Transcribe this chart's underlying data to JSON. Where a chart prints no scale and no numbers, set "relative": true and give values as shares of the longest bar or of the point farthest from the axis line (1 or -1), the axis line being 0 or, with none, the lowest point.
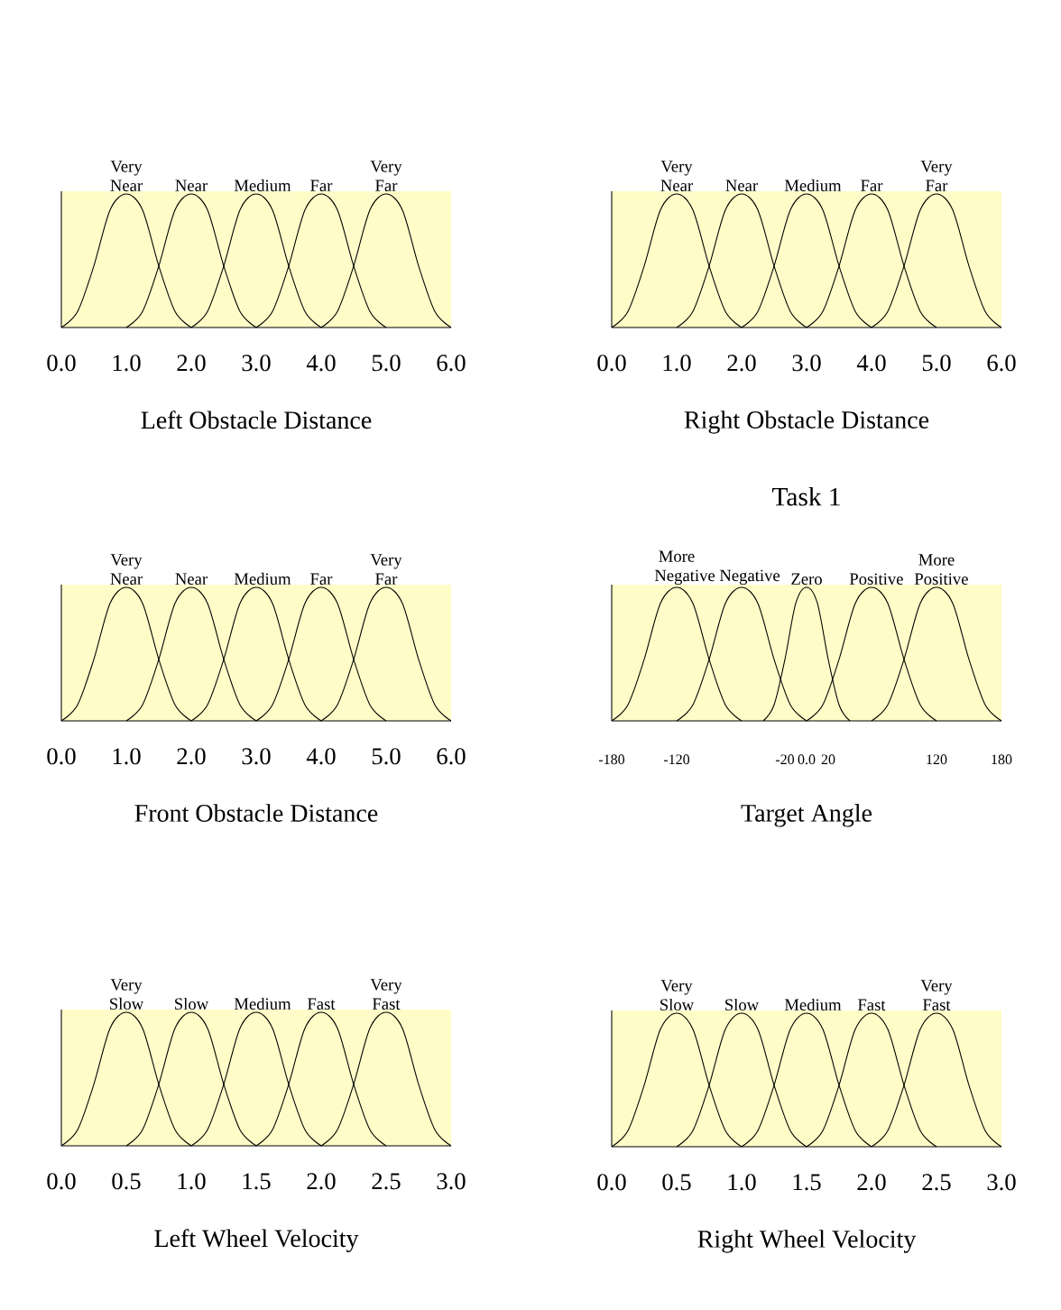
{
  "chart_data": [
    {
      "type": "line",
      "relative": true,
      "xlabel": "Left Obstacle Distance",
      "xlim": [
        0,
        6
      ],
      "xticks": [
        {
          "value": 0,
          "label": "0.0"
        },
        {
          "value": 1,
          "label": "1.0"
        },
        {
          "value": 2,
          "label": "2.0"
        },
        {
          "value": 3,
          "label": "3.0"
        },
        {
          "value": 4,
          "label": "4.0"
        },
        {
          "value": 5,
          "label": "5.0"
        },
        {
          "value": 6,
          "label": "6.0"
        }
      ],
      "series": [
        {
          "name": "Very Near",
          "color": "#000000",
          "x": [
            0,
            0.25,
            0.5,
            0.75,
            1,
            1.25,
            1.5,
            1.75,
            2
          ],
          "values": [
            0,
            0.12,
            0.46,
            0.88,
            1,
            0.88,
            0.46,
            0.12,
            0
          ]
        },
        {
          "name": "Near",
          "color": "#000000",
          "x": [
            1,
            1.25,
            1.5,
            1.75,
            2,
            2.25,
            2.5,
            2.75,
            3
          ],
          "values": [
            0,
            0.12,
            0.46,
            0.88,
            1,
            0.88,
            0.46,
            0.12,
            0
          ]
        },
        {
          "name": "Medium",
          "color": "#000000",
          "x": [
            2,
            2.25,
            2.5,
            2.75,
            3,
            3.25,
            3.5,
            3.75,
            4
          ],
          "values": [
            0,
            0.12,
            0.46,
            0.88,
            1,
            0.88,
            0.46,
            0.12,
            0
          ]
        },
        {
          "name": "Far",
          "color": "#000000",
          "x": [
            3,
            3.25,
            3.5,
            3.75,
            4,
            4.25,
            4.5,
            4.75,
            5
          ],
          "values": [
            0,
            0.12,
            0.46,
            0.88,
            1,
            0.88,
            0.46,
            0.12,
            0
          ]
        },
        {
          "name": "Very Far",
          "color": "#000000",
          "x": [
            4,
            4.25,
            4.5,
            4.75,
            5,
            5.25,
            5.5,
            5.75,
            6
          ],
          "values": [
            0,
            0.12,
            0.46,
            0.88,
            1,
            0.88,
            0.46,
            0.12,
            0
          ]
        }
      ]
    },
    {
      "type": "line",
      "relative": true,
      "xlabel": "Right Obstacle Distance",
      "xlim": [
        0,
        6
      ],
      "xticks": [
        {
          "value": 0,
          "label": "0.0"
        },
        {
          "value": 1,
          "label": "1.0"
        },
        {
          "value": 2,
          "label": "2.0"
        },
        {
          "value": 3,
          "label": "3.0"
        },
        {
          "value": 4,
          "label": "4.0"
        },
        {
          "value": 5,
          "label": "5.0"
        },
        {
          "value": 6,
          "label": "6.0"
        }
      ],
      "series": [
        {
          "name": "Very Near",
          "color": "#000000",
          "x": [
            0,
            0.25,
            0.5,
            0.75,
            1,
            1.25,
            1.5,
            1.75,
            2
          ],
          "values": [
            0,
            0.12,
            0.46,
            0.88,
            1,
            0.88,
            0.46,
            0.12,
            0
          ]
        },
        {
          "name": "Near",
          "color": "#000000",
          "x": [
            1,
            1.25,
            1.5,
            1.75,
            2,
            2.25,
            2.5,
            2.75,
            3
          ],
          "values": [
            0,
            0.12,
            0.46,
            0.88,
            1,
            0.88,
            0.46,
            0.12,
            0
          ]
        },
        {
          "name": "Medium",
          "color": "#000000",
          "x": [
            2,
            2.25,
            2.5,
            2.75,
            3,
            3.25,
            3.5,
            3.75,
            4
          ],
          "values": [
            0,
            0.12,
            0.46,
            0.88,
            1,
            0.88,
            0.46,
            0.12,
            0
          ]
        },
        {
          "name": "Far",
          "color": "#000000",
          "x": [
            3,
            3.25,
            3.5,
            3.75,
            4,
            4.25,
            4.5,
            4.75,
            5
          ],
          "values": [
            0,
            0.12,
            0.46,
            0.88,
            1,
            0.88,
            0.46,
            0.12,
            0
          ]
        },
        {
          "name": "Very Far",
          "color": "#000000",
          "x": [
            4,
            4.25,
            4.5,
            4.75,
            5,
            5.25,
            5.5,
            5.75,
            6
          ],
          "values": [
            0,
            0.12,
            0.46,
            0.88,
            1,
            0.88,
            0.46,
            0.12,
            0
          ]
        }
      ]
    },
    {
      "type": "line",
      "relative": true,
      "xlabel": "Front Obstacle Distance",
      "xlim": [
        0,
        6
      ],
      "xticks": [
        {
          "value": 0,
          "label": "0.0"
        },
        {
          "value": 1,
          "label": "1.0"
        },
        {
          "value": 2,
          "label": "2.0"
        },
        {
          "value": 3,
          "label": "3.0"
        },
        {
          "value": 4,
          "label": "4.0"
        },
        {
          "value": 5,
          "label": "5.0"
        },
        {
          "value": 6,
          "label": "6.0"
        }
      ],
      "series": [
        {
          "name": "Very Near",
          "color": "#000000",
          "x": [
            0,
            0.25,
            0.5,
            0.75,
            1,
            1.25,
            1.5,
            1.75,
            2
          ],
          "values": [
            0,
            0.12,
            0.46,
            0.88,
            1,
            0.88,
            0.46,
            0.12,
            0
          ]
        },
        {
          "name": "Near",
          "color": "#000000",
          "x": [
            1,
            1.25,
            1.5,
            1.75,
            2,
            2.25,
            2.5,
            2.75,
            3
          ],
          "values": [
            0,
            0.12,
            0.46,
            0.88,
            1,
            0.88,
            0.46,
            0.12,
            0
          ]
        },
        {
          "name": "Medium",
          "color": "#000000",
          "x": [
            2,
            2.25,
            2.5,
            2.75,
            3,
            3.25,
            3.5,
            3.75,
            4
          ],
          "values": [
            0,
            0.12,
            0.46,
            0.88,
            1,
            0.88,
            0.46,
            0.12,
            0
          ]
        },
        {
          "name": "Far",
          "color": "#000000",
          "x": [
            3,
            3.25,
            3.5,
            3.75,
            4,
            4.25,
            4.5,
            4.75,
            5
          ],
          "values": [
            0,
            0.12,
            0.46,
            0.88,
            1,
            0.88,
            0.46,
            0.12,
            0
          ]
        },
        {
          "name": "Very Far",
          "color": "#000000",
          "x": [
            4,
            4.25,
            4.5,
            4.75,
            5,
            5.25,
            5.5,
            5.75,
            6
          ],
          "values": [
            0,
            0.12,
            0.46,
            0.88,
            1,
            0.88,
            0.46,
            0.12,
            0
          ]
        }
      ]
    },
    {
      "type": "line",
      "relative": true,
      "xlabel": "Target Angle",
      "annotations": [
        "Task 1"
      ],
      "xlim": [
        -180,
        180
      ],
      "xticks": [
        -180,
        -120,
        -20,
        {
          "value": 0,
          "label": "0.0"
        },
        20,
        120,
        180
      ],
      "series": [
        {
          "name": "More Negative",
          "color": "#000000",
          "x": [
            -180,
            -165,
            -150,
            -135,
            -120,
            -105,
            -90,
            -75,
            -60
          ],
          "values": [
            0,
            0.12,
            0.46,
            0.88,
            1,
            0.88,
            0.46,
            0.12,
            0
          ]
        },
        {
          "name": "Negative",
          "color": "#000000",
          "x": [
            -120,
            -105,
            -90,
            -75,
            -60,
            -45,
            -30,
            -15,
            0
          ],
          "values": [
            0,
            0.12,
            0.46,
            0.88,
            1,
            0.88,
            0.46,
            0.12,
            0
          ]
        },
        {
          "name": "Zero",
          "color": "#000000",
          "x": [
            -40,
            -30,
            -20,
            -10,
            0,
            10,
            20,
            30,
            40
          ],
          "values": [
            0,
            0.12,
            0.46,
            0.88,
            1,
            0.88,
            0.46,
            0.12,
            0
          ]
        },
        {
          "name": "Positive",
          "color": "#000000",
          "x": [
            0,
            15,
            30,
            45,
            60,
            75,
            90,
            105,
            120
          ],
          "values": [
            0,
            0.12,
            0.46,
            0.88,
            1,
            0.88,
            0.46,
            0.12,
            0
          ]
        },
        {
          "name": "More Positive",
          "color": "#000000",
          "x": [
            60,
            75,
            90,
            105,
            120,
            135,
            150,
            165,
            180
          ],
          "values": [
            0,
            0.12,
            0.46,
            0.88,
            1,
            0.88,
            0.46,
            0.12,
            0
          ]
        }
      ]
    },
    {
      "type": "line",
      "relative": true,
      "xlabel": "Left Wheel Velocity",
      "xlim": [
        0,
        3
      ],
      "xticks": [
        {
          "value": 0,
          "label": "0.0"
        },
        0.5,
        {
          "value": 1,
          "label": "1.0"
        },
        1.5,
        {
          "value": 2,
          "label": "2.0"
        },
        2.5,
        {
          "value": 3,
          "label": "3.0"
        }
      ],
      "series": [
        {
          "name": "Very Slow",
          "color": "#000000",
          "x": [
            0,
            0.125,
            0.25,
            0.375,
            0.5,
            0.625,
            0.75,
            0.875,
            1
          ],
          "values": [
            0,
            0.12,
            0.46,
            0.88,
            1,
            0.88,
            0.46,
            0.12,
            0
          ]
        },
        {
          "name": "Slow",
          "color": "#000000",
          "x": [
            0.5,
            0.625,
            0.75,
            0.875,
            1,
            1.125,
            1.25,
            1.375,
            1.5
          ],
          "values": [
            0,
            0.12,
            0.46,
            0.88,
            1,
            0.88,
            0.46,
            0.12,
            0
          ]
        },
        {
          "name": "Medium",
          "color": "#000000",
          "x": [
            1,
            1.125,
            1.25,
            1.375,
            1.5,
            1.625,
            1.75,
            1.875,
            2
          ],
          "values": [
            0,
            0.12,
            0.46,
            0.88,
            1,
            0.88,
            0.46,
            0.12,
            0
          ]
        },
        {
          "name": "Fast",
          "color": "#000000",
          "x": [
            1.5,
            1.625,
            1.75,
            1.875,
            2,
            2.125,
            2.25,
            2.375,
            2.5
          ],
          "values": [
            0,
            0.12,
            0.46,
            0.88,
            1,
            0.88,
            0.46,
            0.12,
            0
          ]
        },
        {
          "name": "Very Fast",
          "color": "#000000",
          "x": [
            2,
            2.125,
            2.25,
            2.375,
            2.5,
            2.625,
            2.75,
            2.875,
            3
          ],
          "values": [
            0,
            0.12,
            0.46,
            0.88,
            1,
            0.88,
            0.46,
            0.12,
            0
          ]
        }
      ]
    },
    {
      "type": "line",
      "relative": true,
      "xlabel": "Right Wheel Velocity",
      "xlim": [
        0,
        3
      ],
      "xticks": [
        {
          "value": 0,
          "label": "0.0"
        },
        0.5,
        {
          "value": 1,
          "label": "1.0"
        },
        1.5,
        {
          "value": 2,
          "label": "2.0"
        },
        2.5,
        {
          "value": 3,
          "label": "3.0"
        }
      ],
      "series": [
        {
          "name": "Very Slow",
          "color": "#000000",
          "x": [
            0,
            0.125,
            0.25,
            0.375,
            0.5,
            0.625,
            0.75,
            0.875,
            1
          ],
          "values": [
            0,
            0.12,
            0.46,
            0.88,
            1,
            0.88,
            0.46,
            0.12,
            0
          ]
        },
        {
          "name": "Slow",
          "color": "#000000",
          "x": [
            0.5,
            0.625,
            0.75,
            0.875,
            1,
            1.125,
            1.25,
            1.375,
            1.5
          ],
          "values": [
            0,
            0.12,
            0.46,
            0.88,
            1,
            0.88,
            0.46,
            0.12,
            0
          ]
        },
        {
          "name": "Medium",
          "color": "#000000",
          "x": [
            1,
            1.125,
            1.25,
            1.375,
            1.5,
            1.625,
            1.75,
            1.875,
            2
          ],
          "values": [
            0,
            0.12,
            0.46,
            0.88,
            1,
            0.88,
            0.46,
            0.12,
            0
          ]
        },
        {
          "name": "Fast",
          "color": "#000000",
          "x": [
            1.5,
            1.625,
            1.75,
            1.875,
            2,
            2.125,
            2.25,
            2.375,
            2.5
          ],
          "values": [
            0,
            0.12,
            0.46,
            0.88,
            1,
            0.88,
            0.46,
            0.12,
            0
          ]
        },
        {
          "name": "Very Fast",
          "color": "#000000",
          "x": [
            2,
            2.125,
            2.25,
            2.375,
            2.5,
            2.625,
            2.75,
            2.875,
            3
          ],
          "values": [
            0,
            0.12,
            0.46,
            0.88,
            1,
            0.88,
            0.46,
            0.12,
            0
          ]
        }
      ]
    }
  ]
}
